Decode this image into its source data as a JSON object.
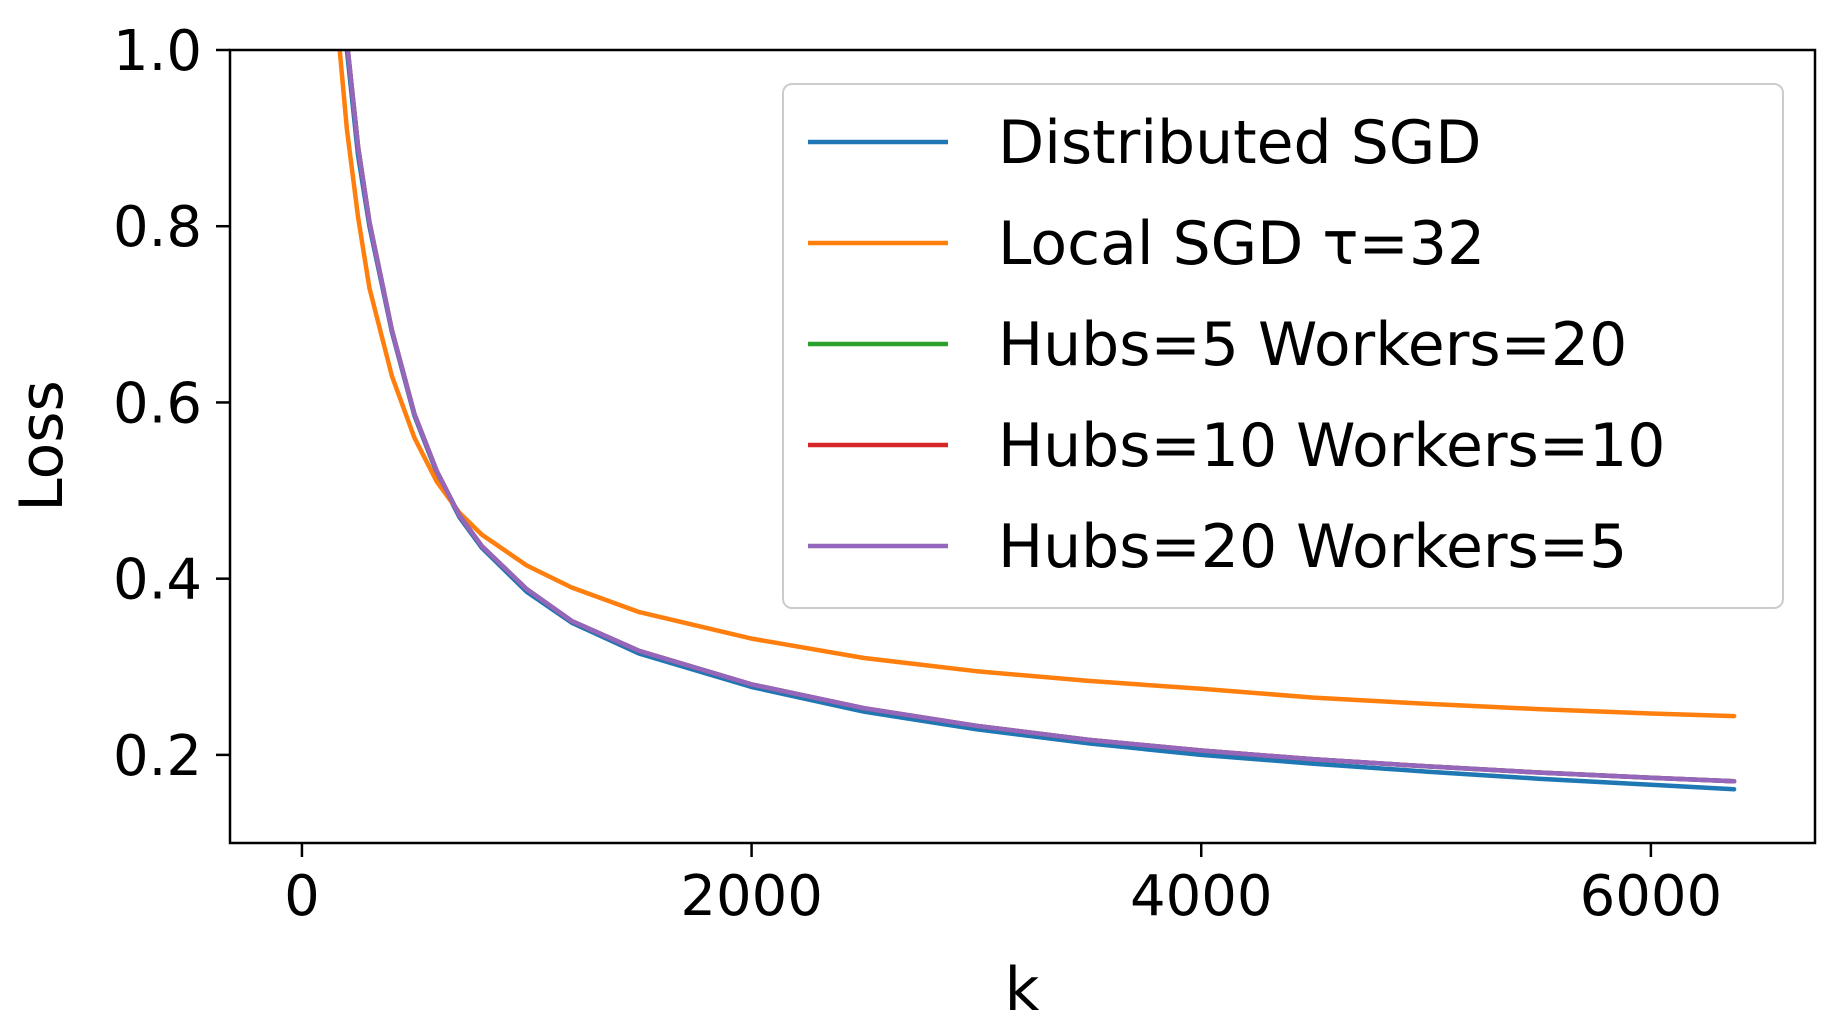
{
  "chart_data": {
    "type": "line",
    "title": "",
    "xlabel": "k",
    "ylabel": "Loss",
    "xlim": [
      -320,
      6730
    ],
    "ylim": [
      0.1,
      1.0
    ],
    "xticks": [
      0,
      2000,
      4000,
      6000
    ],
    "yticks": [
      0.2,
      0.4,
      0.6,
      0.8,
      1.0
    ],
    "xtick_labels": [
      "0",
      "2000",
      "4000",
      "6000"
    ],
    "ytick_labels": [
      "0.2",
      "0.4",
      "0.6",
      "0.8",
      "1.0"
    ],
    "grid": false,
    "legend_position": "top-right",
    "x": [
      150,
      200,
      250,
      300,
      400,
      500,
      600,
      700,
      800,
      1000,
      1200,
      1500,
      2000,
      2500,
      3000,
      3500,
      4000,
      4500,
      5000,
      5500,
      6000,
      6370
    ],
    "series": [
      {
        "name": "Distributed SGD",
        "color": "#1f77b4",
        "values": [
          1.12,
          1.0,
          0.88,
          0.8,
          0.68,
          0.585,
          0.52,
          0.47,
          0.435,
          0.385,
          0.35,
          0.315,
          0.277,
          0.249,
          0.229,
          0.213,
          0.2,
          0.19,
          0.181,
          0.173,
          0.166,
          0.161
        ]
      },
      {
        "name": "Local SGD τ=32",
        "color": "#ff7f0e",
        "values": [
          1.05,
          0.91,
          0.81,
          0.73,
          0.63,
          0.56,
          0.51,
          0.475,
          0.45,
          0.415,
          0.39,
          0.362,
          0.332,
          0.31,
          0.295,
          0.284,
          0.275,
          0.265,
          0.258,
          0.252,
          0.247,
          0.244
        ]
      },
      {
        "name": "Hubs=5 Workers=20",
        "color": "#2ca02c",
        "values": [
          1.13,
          1.01,
          0.89,
          0.805,
          0.682,
          0.587,
          0.522,
          0.472,
          0.437,
          0.388,
          0.352,
          0.318,
          0.28,
          0.253,
          0.233,
          0.217,
          0.205,
          0.195,
          0.187,
          0.18,
          0.174,
          0.17
        ]
      },
      {
        "name": "Hubs=10 Workers=10",
        "color": "#d62728",
        "values": [
          1.13,
          1.01,
          0.89,
          0.805,
          0.682,
          0.587,
          0.522,
          0.472,
          0.437,
          0.388,
          0.352,
          0.318,
          0.28,
          0.253,
          0.233,
          0.217,
          0.205,
          0.195,
          0.187,
          0.18,
          0.174,
          0.17
        ]
      },
      {
        "name": "Hubs=20 Workers=5",
        "color": "#9467bd",
        "values": [
          1.13,
          1.01,
          0.89,
          0.805,
          0.682,
          0.587,
          0.522,
          0.472,
          0.437,
          0.388,
          0.352,
          0.318,
          0.28,
          0.253,
          0.233,
          0.217,
          0.205,
          0.195,
          0.187,
          0.18,
          0.174,
          0.17
        ]
      }
    ]
  }
}
